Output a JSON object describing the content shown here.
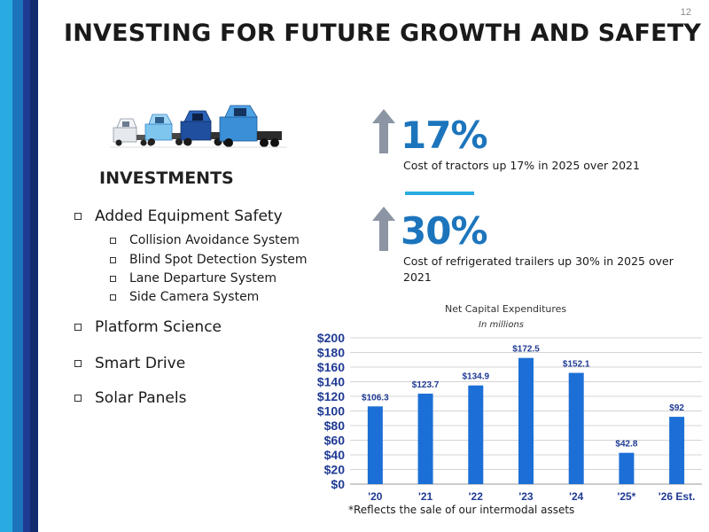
{
  "page": {
    "number": "12",
    "title": "INVESTING FOR FUTURE GROWTH AND SAFETY",
    "accent_colors": {
      "dark_blue": "#1f3a93",
      "mid_blue": "#1c75bc",
      "light_blue": "#29abe2"
    }
  },
  "investments": {
    "heading": "INVESTMENTS",
    "items": [
      {
        "label": "Added Equipment Safety",
        "subitems": [
          "Collision Avoidance System",
          "Blind Spot Detection System",
          "Lane Departure System",
          "Side Camera System"
        ]
      },
      {
        "label": "Platform Science"
      },
      {
        "label": "Smart Drive"
      },
      {
        "label": "Solar Panels"
      }
    ]
  },
  "stats": [
    {
      "value": "17%",
      "description": "Cost of tractors up 17% in 2025 over 2021",
      "icon": "up-arrow-icon"
    },
    {
      "value": "30%",
      "description_line1": "Cost of refrigerated trailers up 30% in 2025 over",
      "description_line2": "2021",
      "icon": "up-arrow-icon"
    }
  ],
  "chart_data": {
    "type": "bar",
    "title": "Net Capital Expenditures",
    "subtitle": "In millions",
    "categories": [
      "'20",
      "'21",
      "'22",
      "'23",
      "'24",
      "'25*",
      "'26 Est."
    ],
    "values": [
      106.3,
      123.7,
      134.9,
      172.5,
      152.1,
      42.8,
      92
    ],
    "data_labels": [
      "$106.3",
      "$123.7",
      "$134.9",
      "$172.5",
      "$152.1",
      "$42.8",
      "$92"
    ],
    "ylim": [
      0,
      200
    ],
    "yticks": [
      0,
      20,
      40,
      60,
      80,
      100,
      120,
      140,
      160,
      180,
      200
    ],
    "ytick_labels": [
      "$0",
      "$20",
      "$40",
      "$60",
      "$80",
      "$100",
      "$120",
      "$140",
      "$160",
      "$180",
      "$200"
    ],
    "grid": true,
    "bar_color": "#1c6fd6",
    "footnote": "*Reflects the sale of our intermodal assets"
  }
}
